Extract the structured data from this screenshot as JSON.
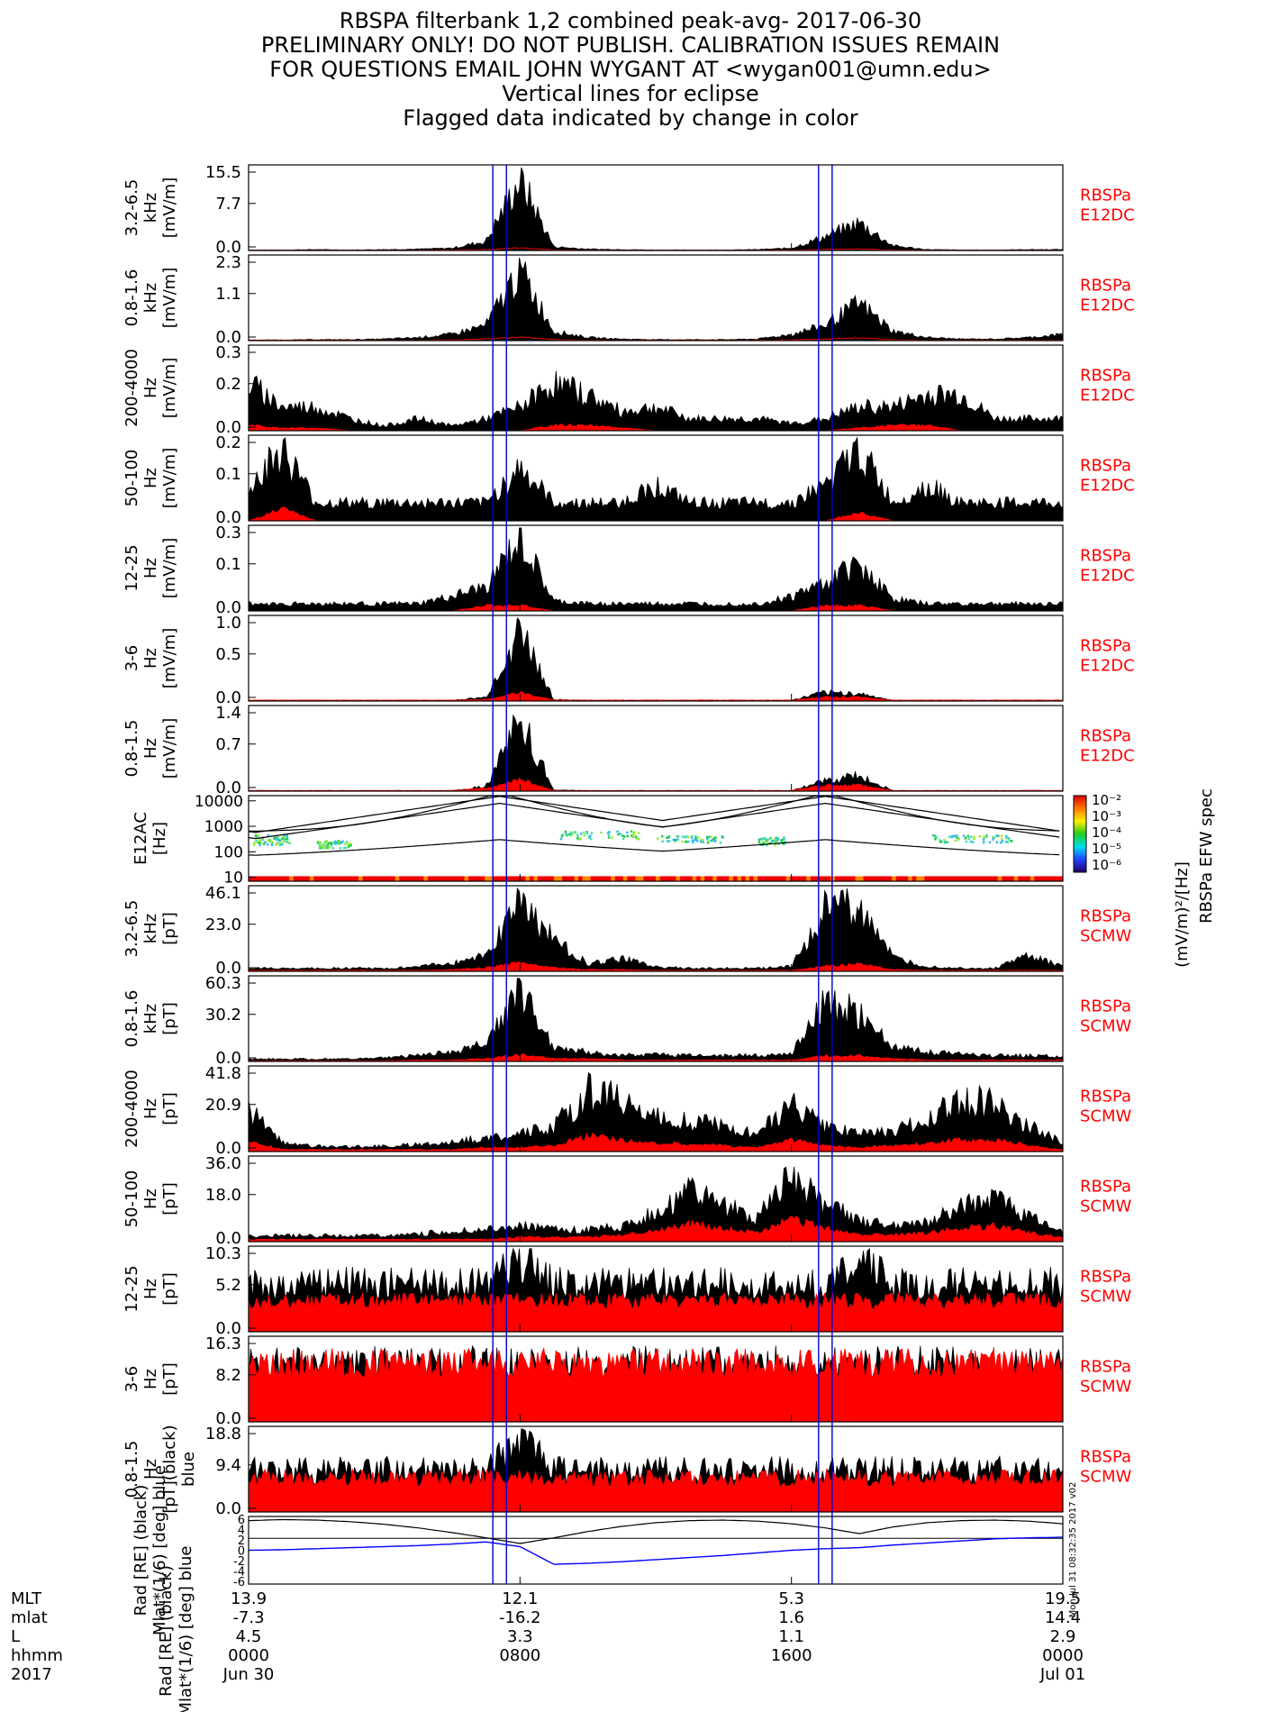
{
  "title_lines": [
    "RBSPA filterbank 1,2 combined peak-avg- 2017-06-30",
    "PRELIMINARY ONLY! DO NOT PUBLISH. CALIBRATION ISSUES REMAIN",
    "FOR QUESTIONS EMAIL JOHN WYGANT AT <wygan001@umn.edu>",
    "Vertical lines for eclipse",
    "Flagged data indicated by change in color"
  ],
  "colors": {
    "peak": "#000000",
    "avg": "#ff0000",
    "eclipse": "#0000cc",
    "ephem_blue": "#0000ff"
  },
  "chart_data": {
    "type": "line",
    "xrange_hours": [
      0,
      24
    ],
    "eclipse_lines_hours": [
      7.2,
      7.6,
      16.8,
      17.2
    ],
    "panels": [
      {
        "ylabel": [
          "3.2-6.5",
          "kHz",
          "[mV/m]"
        ],
        "ticks": [
          "15.5",
          "7.7",
          "0.0"
        ],
        "ymax": 15.5,
        "instrument": [
          "RBSPa",
          "E12DC"
        ],
        "peak": [
          0.1,
          0.1,
          0.2,
          0.1,
          0.2,
          0.3,
          0.5,
          2.0,
          15.5,
          0.8,
          0.3,
          0.2,
          0.1,
          0.1,
          0.1,
          0.2,
          0.5,
          3.0,
          6.0,
          1.0,
          0.2,
          0.1,
          0.1,
          0.2,
          0.2
        ],
        "avg": [
          0.05,
          0.05,
          0.05,
          0.05,
          0.05,
          0.05,
          0.1,
          0.2,
          0.5,
          0.1,
          0.05,
          0.05,
          0.05,
          0.05,
          0.05,
          0.05,
          0.1,
          0.2,
          0.3,
          0.1,
          0.05,
          0.05,
          0.05,
          0.05,
          0.05
        ],
        "avg_mode": "line"
      },
      {
        "ylabel": [
          "0.8-1.6",
          "kHz",
          "[mV/m]"
        ],
        "ticks": [
          "2.3",
          "1.1",
          "0.0"
        ],
        "ymax": 2.3,
        "instrument": [
          "RBSPa",
          "E12DC"
        ],
        "peak": [
          0.02,
          0.02,
          0.03,
          0.03,
          0.05,
          0.1,
          0.2,
          0.5,
          2.3,
          0.3,
          0.1,
          0.05,
          0.03,
          0.03,
          0.03,
          0.05,
          0.2,
          0.5,
          1.2,
          0.3,
          0.1,
          0.05,
          0.05,
          0.1,
          0.2
        ],
        "avg": [
          0.01,
          0.01,
          0.01,
          0.01,
          0.01,
          0.01,
          0.02,
          0.05,
          0.1,
          0.03,
          0.01,
          0.01,
          0.01,
          0.01,
          0.01,
          0.01,
          0.02,
          0.05,
          0.08,
          0.02,
          0.01,
          0.01,
          0.01,
          0.01,
          0.01
        ],
        "avg_mode": "line"
      },
      {
        "ylabel": [
          "200-4000",
          "Hz",
          "[mV/m]"
        ],
        "ticks": [
          "0.3",
          "0.2",
          "0.0"
        ],
        "ymax": 0.3,
        "instrument": [
          "RBSPa",
          "E12DC"
        ],
        "peak": [
          0.2,
          0.1,
          0.1,
          0.05,
          0.02,
          0.05,
          0.02,
          0.05,
          0.1,
          0.2,
          0.15,
          0.08,
          0.1,
          0.05,
          0.05,
          0.05,
          0.03,
          0.05,
          0.1,
          0.1,
          0.15,
          0.15,
          0.05,
          0.05,
          0.05
        ],
        "avg": [
          0.02,
          0.01,
          0.01,
          0.0,
          0.0,
          0.0,
          0.0,
          0.0,
          0.0,
          0.02,
          0.02,
          0.01,
          0.0,
          0.0,
          0.0,
          0.0,
          0.0,
          0.0,
          0.01,
          0.02,
          0.02,
          0.0,
          0.0,
          0.0,
          0.0
        ],
        "avg_mode": "fill"
      },
      {
        "ylabel": [
          "50-100",
          "Hz",
          "[mV/m]"
        ],
        "ticks": [
          "0.2",
          "0.1",
          "0.0"
        ],
        "ymax": 0.2,
        "instrument": [
          "RBSPa",
          "E12DC"
        ],
        "peak": [
          0.1,
          0.2,
          0.05,
          0.05,
          0.05,
          0.05,
          0.05,
          0.05,
          0.15,
          0.05,
          0.05,
          0.05,
          0.1,
          0.05,
          0.05,
          0.05,
          0.05,
          0.1,
          0.2,
          0.05,
          0.1,
          0.05,
          0.05,
          0.05,
          0.05
        ],
        "avg": [
          0.0,
          0.03,
          0.0,
          0.0,
          0.0,
          0.0,
          0.0,
          0.0,
          0.0,
          0.0,
          0.0,
          0.0,
          0.0,
          0.0,
          0.0,
          0.0,
          0.0,
          0.0,
          0.02,
          0.0,
          0.0,
          0.0,
          0.0,
          0.0,
          0.0
        ],
        "avg_mode": "fill"
      },
      {
        "ylabel": [
          "12-25",
          "Hz",
          "[mV/m]"
        ],
        "ticks": [
          "0.3",
          "0.1",
          "0.0"
        ],
        "ymax": 0.3,
        "instrument": [
          "RBSPa",
          "E12DC"
        ],
        "peak": [
          0.03,
          0.03,
          0.03,
          0.03,
          0.03,
          0.03,
          0.06,
          0.1,
          0.3,
          0.04,
          0.03,
          0.03,
          0.03,
          0.03,
          0.03,
          0.03,
          0.06,
          0.12,
          0.2,
          0.05,
          0.03,
          0.03,
          0.03,
          0.03,
          0.03
        ],
        "avg": [
          0.0,
          0.0,
          0.0,
          0.0,
          0.0,
          0.0,
          0.0,
          0.02,
          0.02,
          0.0,
          0.0,
          0.0,
          0.0,
          0.0,
          0.0,
          0.0,
          0.0,
          0.02,
          0.02,
          0.0,
          0.0,
          0.0,
          0.0,
          0.0,
          0.0
        ],
        "avg_mode": "fill"
      },
      {
        "ylabel": [
          "3-6",
          "Hz",
          "[mV/m]"
        ],
        "ticks": [
          "1.0",
          "0.5",
          "0.0"
        ],
        "ymax": 1.0,
        "instrument": [
          "RBSPa",
          "E12DC"
        ],
        "peak": [
          0.01,
          0.01,
          0.01,
          0.01,
          0.01,
          0.01,
          0.01,
          0.05,
          1.0,
          0.02,
          0.01,
          0.01,
          0.01,
          0.01,
          0.01,
          0.01,
          0.01,
          0.12,
          0.1,
          0.01,
          0.01,
          0.01,
          0.01,
          0.01,
          0.01
        ],
        "avg": [
          0.01,
          0.01,
          0.01,
          0.01,
          0.01,
          0.01,
          0.01,
          0.02,
          0.1,
          0.01,
          0.01,
          0.01,
          0.01,
          0.01,
          0.01,
          0.01,
          0.01,
          0.05,
          0.05,
          0.01,
          0.01,
          0.01,
          0.01,
          0.01,
          0.01
        ],
        "avg_mode": "fill"
      },
      {
        "ylabel": [
          "0.8-1.5",
          "Hz",
          "[mV/m]"
        ],
        "ticks": [
          "1.4",
          "0.7",
          "0.0"
        ],
        "ymax": 1.4,
        "instrument": [
          "RBSPa",
          "E12DC"
        ],
        "peak": [
          0.01,
          0.01,
          0.01,
          0.01,
          0.01,
          0.01,
          0.01,
          0.1,
          1.4,
          0.02,
          0.01,
          0.01,
          0.01,
          0.01,
          0.01,
          0.01,
          0.01,
          0.2,
          0.3,
          0.01,
          0.01,
          0.01,
          0.01,
          0.01,
          0.01
        ],
        "avg": [
          0.01,
          0.01,
          0.01,
          0.01,
          0.01,
          0.01,
          0.01,
          0.05,
          0.2,
          0.01,
          0.01,
          0.01,
          0.01,
          0.01,
          0.01,
          0.01,
          0.01,
          0.1,
          0.1,
          0.01,
          0.01,
          0.01,
          0.01,
          0.01,
          0.01
        ],
        "avg_mode": "fill"
      },
      {
        "kind": "spectrogram",
        "ylabel": [
          "E12AC",
          "[Hz]"
        ],
        "ticks": [
          "10000",
          "1000",
          "100",
          "10"
        ],
        "yrange_hz": [
          7,
          16000
        ],
        "colorbar": {
          "title": "RBSPa EFW spec",
          "unit": "(mV/m)²/[Hz]",
          "ticks": [
            "10⁻²",
            "10⁻³",
            "10⁻⁴",
            "10⁻⁵",
            "10⁻⁶"
          ]
        }
      },
      {
        "ylabel": [
          "3.2-6.5",
          "kHz",
          "[pT]"
        ],
        "ticks": [
          "46.1",
          "23.0",
          "0.0"
        ],
        "ymax": 46.1,
        "instrument": [
          "RBSPa",
          "SCMW"
        ],
        "peak": [
          2,
          2,
          2,
          2,
          2,
          3,
          5,
          10,
          46,
          20,
          5,
          8,
          3,
          2,
          2,
          2,
          3,
          40,
          45,
          8,
          3,
          2,
          2,
          10,
          3
        ],
        "avg": [
          0.5,
          0.5,
          0.5,
          0.5,
          0.5,
          0.5,
          1,
          2,
          5,
          2,
          1,
          1,
          0.5,
          0.5,
          0.5,
          0.5,
          0.5,
          3,
          4,
          1,
          0.5,
          0.5,
          0.5,
          0.5,
          0.5
        ],
        "avg_mode": "fill"
      },
      {
        "ylabel": [
          "0.8-1.6",
          "kHz",
          "[pT]"
        ],
        "ticks": [
          "60.3",
          "30.2",
          "0.0"
        ],
        "ymax": 60.3,
        "instrument": [
          "RBSPa",
          "SCMW"
        ],
        "peak": [
          2,
          2,
          2,
          2,
          3,
          5,
          8,
          15,
          60,
          12,
          8,
          5,
          6,
          5,
          5,
          5,
          6,
          50,
          40,
          12,
          8,
          6,
          5,
          5,
          4
        ],
        "avg": [
          0.5,
          0.5,
          0.5,
          0.5,
          0.5,
          1,
          1,
          2,
          5,
          2,
          2,
          1,
          1,
          1,
          1,
          1,
          1,
          4,
          4,
          2,
          1,
          1,
          1,
          1,
          1
        ],
        "avg_mode": "fill"
      },
      {
        "ylabel": [
          "200-4000",
          "Hz",
          "[pT]"
        ],
        "ticks": [
          "41.8",
          "20.9",
          "0.0"
        ],
        "ymax": 41.8,
        "instrument": [
          "RBSPa",
          "SCMW"
        ],
        "peak": [
          25,
          5,
          3,
          3,
          3,
          4,
          6,
          8,
          10,
          15,
          35,
          30,
          20,
          18,
          15,
          10,
          30,
          15,
          10,
          12,
          20,
          30,
          28,
          15,
          5
        ],
        "avg": [
          5,
          1,
          1,
          1,
          1,
          1,
          1,
          2,
          2,
          3,
          8,
          6,
          4,
          4,
          3,
          2,
          6,
          3,
          2,
          3,
          4,
          6,
          6,
          3,
          1
        ],
        "avg_mode": "fill"
      },
      {
        "ylabel": [
          "50-100",
          "Hz",
          "[pT]"
        ],
        "ticks": [
          "36.0",
          "18.0",
          "0.0"
        ],
        "ymax": 36.0,
        "instrument": [
          "RBSPa",
          "SCMW"
        ],
        "peak": [
          3,
          3,
          3,
          3,
          3,
          4,
          5,
          6,
          8,
          6,
          6,
          8,
          15,
          25,
          18,
          12,
          32,
          20,
          10,
          8,
          10,
          18,
          22,
          12,
          5
        ],
        "avg": [
          1,
          1,
          1,
          1,
          1,
          1,
          1,
          1,
          2,
          2,
          2,
          3,
          5,
          8,
          6,
          4,
          10,
          6,
          3,
          3,
          4,
          6,
          7,
          4,
          2
        ],
        "avg_mode": "fill"
      },
      {
        "ylabel": [
          "12-25",
          "Hz",
          "[pT]"
        ],
        "ticks": [
          "10.3",
          "5.2",
          "0.0"
        ],
        "ymax": 10.3,
        "instrument": [
          "RBSPa",
          "SCMW"
        ],
        "peak": [
          7,
          7,
          7,
          7,
          7,
          7,
          7,
          7,
          10.3,
          7,
          7,
          7,
          7,
          7,
          7,
          7,
          7,
          7,
          10,
          7,
          7,
          7,
          7,
          7,
          7
        ],
        "avg": [
          4,
          4,
          4,
          4,
          4,
          4,
          4,
          4,
          4,
          4,
          4,
          4,
          4,
          4,
          4,
          4,
          4,
          4,
          4,
          4,
          4,
          4,
          4,
          4,
          4
        ],
        "avg_mode": "fill"
      },
      {
        "ylabel": [
          "3-6",
          "Hz",
          "[pT]"
        ],
        "ticks": [
          "16.3",
          "8.2",
          "0.0"
        ],
        "ymax": 16.3,
        "instrument": [
          "RBSPa",
          "SCMW"
        ],
        "peak": [
          13,
          13,
          13,
          13,
          13,
          13,
          13,
          13,
          13,
          13,
          13,
          13,
          13,
          13,
          13,
          13,
          13,
          13,
          13,
          13,
          13,
          13,
          13,
          13,
          13
        ],
        "avg": [
          12,
          12,
          12,
          12,
          12,
          12,
          12,
          12,
          12,
          12,
          12,
          12,
          12,
          12,
          12,
          12,
          12,
          12,
          12,
          12,
          12,
          12,
          12,
          12,
          12
        ],
        "avg_mode": "fill"
      },
      {
        "ylabel": [
          "0.8-1.5",
          "Hz",
          "[pT](black)",
          "blue"
        ],
        "ticks": [
          "18.8",
          "9.4",
          "0.0"
        ],
        "ymax": 18.8,
        "instrument": [
          "RBSPa",
          "SCMW"
        ],
        "peak": [
          11,
          11,
          11,
          11,
          11,
          11,
          11,
          11,
          18.8,
          11,
          11,
          11,
          11,
          11,
          11,
          11,
          11,
          11,
          11,
          11,
          11,
          11,
          11,
          11,
          11
        ],
        "avg": [
          8,
          8,
          8,
          8,
          8,
          8,
          8,
          8,
          8,
          8,
          8,
          8,
          8,
          8,
          8,
          8,
          8,
          8,
          8,
          8,
          8,
          8,
          8,
          8,
          8
        ],
        "avg_mode": "fill"
      },
      {
        "kind": "ephemeris",
        "ylabel": [
          "Rad [RE] (black)",
          "Mlat*(1/6) [deg] blue"
        ],
        "ticks": [
          "6",
          "4",
          "2",
          "0",
          "-2",
          "-4",
          "-6"
        ],
        "yrange": [
          -6.5,
          6.5
        ],
        "rad_re": [
          5.7,
          5.9,
          5.8,
          5.5,
          5.0,
          4.3,
          3.4,
          2.4,
          1.3,
          2.4,
          3.6,
          4.6,
          5.3,
          5.7,
          5.8,
          5.6,
          5.1,
          4.3,
          3.2,
          4.5,
          5.3,
          5.7,
          5.8,
          5.6,
          5.1
        ],
        "mlat_scaled": [
          0.0,
          0.1,
          0.3,
          0.5,
          0.7,
          0.9,
          1.2,
          1.6,
          0.7,
          -2.7,
          -2.5,
          -2.2,
          -1.8,
          -1.4,
          -1.0,
          -0.5,
          0.0,
          0.3,
          0.5,
          1.0,
          1.4,
          1.8,
          2.2,
          2.4,
          2.5
        ],
        "reference_line": 2.3,
        "side_text": "Mon Jul 31 08:32:35 2017 v02"
      }
    ],
    "footer": {
      "rows": [
        "MLT",
        "mlat",
        "L",
        "hhmm",
        "2017"
      ],
      "columns": [
        {
          "hour": 0,
          "values": [
            "13.9",
            "-7.3",
            "4.5",
            "0000",
            "Jun 30"
          ]
        },
        {
          "hour": 8,
          "values": [
            "12.1",
            "-16.2",
            "3.3",
            "0800",
            ""
          ]
        },
        {
          "hour": 16,
          "values": [
            "5.3",
            "1.6",
            "1.1",
            "1600",
            ""
          ]
        },
        {
          "hour": 24,
          "values": [
            "19.5",
            "14.4",
            "2.9",
            "0000",
            "Jul 01"
          ]
        }
      ]
    }
  }
}
